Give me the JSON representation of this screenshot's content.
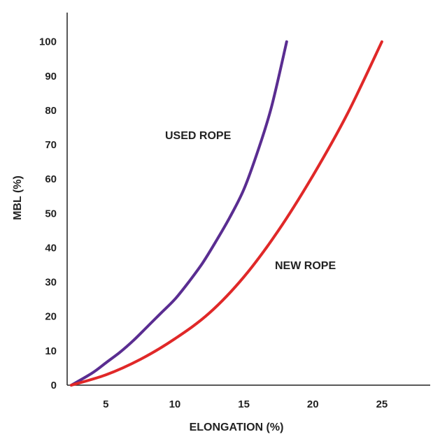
{
  "chart_data": {
    "type": "line",
    "title": "",
    "xlabel": "ELONGATION (%)",
    "ylabel": "MBL (%)",
    "xlim": [
      2.2,
      28.5
    ],
    "ylim": [
      0,
      104
    ],
    "xticks": [
      5,
      10,
      15,
      20,
      25
    ],
    "yticks": [
      0,
      10,
      20,
      30,
      40,
      50,
      60,
      70,
      80,
      90,
      100
    ],
    "grid": false,
    "legend": "none",
    "series": [
      {
        "name": "USED ROPE",
        "color": "#5a2d91",
        "x": [
          2.5,
          4,
          5,
          6,
          7,
          8,
          9,
          10,
          11,
          12,
          13,
          14,
          15,
          16,
          17,
          18.1
        ],
        "y": [
          0,
          3.5,
          6.5,
          9.5,
          13,
          17,
          21,
          25,
          30,
          35.5,
          42,
          49,
          57,
          68,
          81,
          100
        ]
      },
      {
        "name": "NEW ROPE",
        "color": "#e02828",
        "x": [
          2.5,
          5,
          7.5,
          10,
          12.5,
          15,
          17.5,
          20,
          22.5,
          25
        ],
        "y": [
          0,
          3,
          7.5,
          13.5,
          21,
          31.5,
          45,
          61,
          79,
          100
        ]
      }
    ]
  }
}
